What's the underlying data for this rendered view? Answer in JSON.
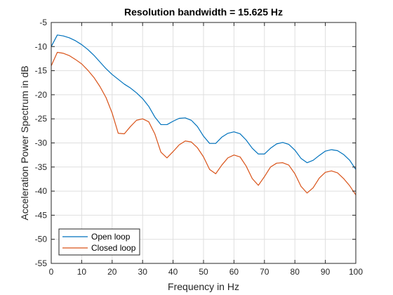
{
  "chart_data": {
    "type": "line",
    "title": "Resolution bandwidth = 15.625 Hz",
    "xlabel": "Frequency in Hz",
    "ylabel": "Acceleration Power Spectrum in dB",
    "xlim": [
      0,
      100
    ],
    "ylim": [
      -55,
      -5
    ],
    "xticks": [
      0,
      10,
      20,
      30,
      40,
      50,
      60,
      70,
      80,
      90,
      100
    ],
    "yticks": [
      -55,
      -50,
      -45,
      -40,
      -35,
      -30,
      -25,
      -20,
      -15,
      -10,
      -5
    ],
    "grid": true,
    "legend_position": "bottom-left",
    "series": [
      {
        "name": "Open loop",
        "color": "#0072BD",
        "x": [
          0,
          2,
          4,
          6,
          8,
          10,
          12,
          14,
          16,
          18,
          20,
          22,
          24,
          26,
          28,
          30,
          32,
          34,
          36,
          38,
          40,
          42,
          44,
          46,
          48,
          50,
          52,
          54,
          56,
          58,
          60,
          62,
          64,
          66,
          68,
          70,
          72,
          74,
          76,
          78,
          80,
          82,
          84,
          86,
          88,
          90,
          92,
          94,
          96,
          98,
          100
        ],
        "y": [
          -10,
          -7.6,
          -7.8,
          -8.2,
          -8.8,
          -9.6,
          -10.6,
          -11.8,
          -13.2,
          -14.6,
          -15.8,
          -16.8,
          -17.8,
          -18.6,
          -19.6,
          -20.8,
          -22.4,
          -24.6,
          -26.2,
          -26.2,
          -25.5,
          -24.9,
          -24.8,
          -25.3,
          -26.6,
          -28.6,
          -30.1,
          -30.1,
          -28.8,
          -28.0,
          -27.7,
          -28.1,
          -29.4,
          -31.1,
          -32.3,
          -32.3,
          -31.1,
          -30.2,
          -29.9,
          -30.3,
          -31.5,
          -33.2,
          -34.1,
          -33.6,
          -32.6,
          -31.7,
          -31.4,
          -31.6,
          -32.4,
          -33.6,
          -35.5
        ]
      },
      {
        "name": "Closed loop",
        "color": "#D95319",
        "x": [
          0,
          2,
          4,
          6,
          8,
          10,
          12,
          14,
          16,
          18,
          20,
          22,
          24,
          26,
          28,
          30,
          32,
          34,
          36,
          38,
          40,
          42,
          44,
          46,
          48,
          50,
          52,
          54,
          56,
          58,
          60,
          62,
          64,
          66,
          68,
          70,
          72,
          74,
          76,
          78,
          80,
          82,
          84,
          86,
          88,
          90,
          92,
          94,
          96,
          98,
          100
        ],
        "y": [
          -14,
          -11.2,
          -11.4,
          -11.9,
          -12.7,
          -13.6,
          -14.9,
          -16.4,
          -18.3,
          -20.6,
          -23.8,
          -28.0,
          -28.1,
          -26.6,
          -25.3,
          -25.0,
          -25.6,
          -28.1,
          -31.9,
          -33.1,
          -31.8,
          -30.4,
          -29.6,
          -29.8,
          -31.0,
          -32.9,
          -35.5,
          -36.4,
          -34.6,
          -33.1,
          -32.5,
          -32.9,
          -34.8,
          -37.4,
          -38.8,
          -37.0,
          -35.0,
          -34.2,
          -34.1,
          -34.6,
          -36.4,
          -39.0,
          -40.4,
          -39.3,
          -37.3,
          -36.1,
          -35.8,
          -36.2,
          -37.4,
          -38.9,
          -40.8
        ]
      }
    ]
  }
}
